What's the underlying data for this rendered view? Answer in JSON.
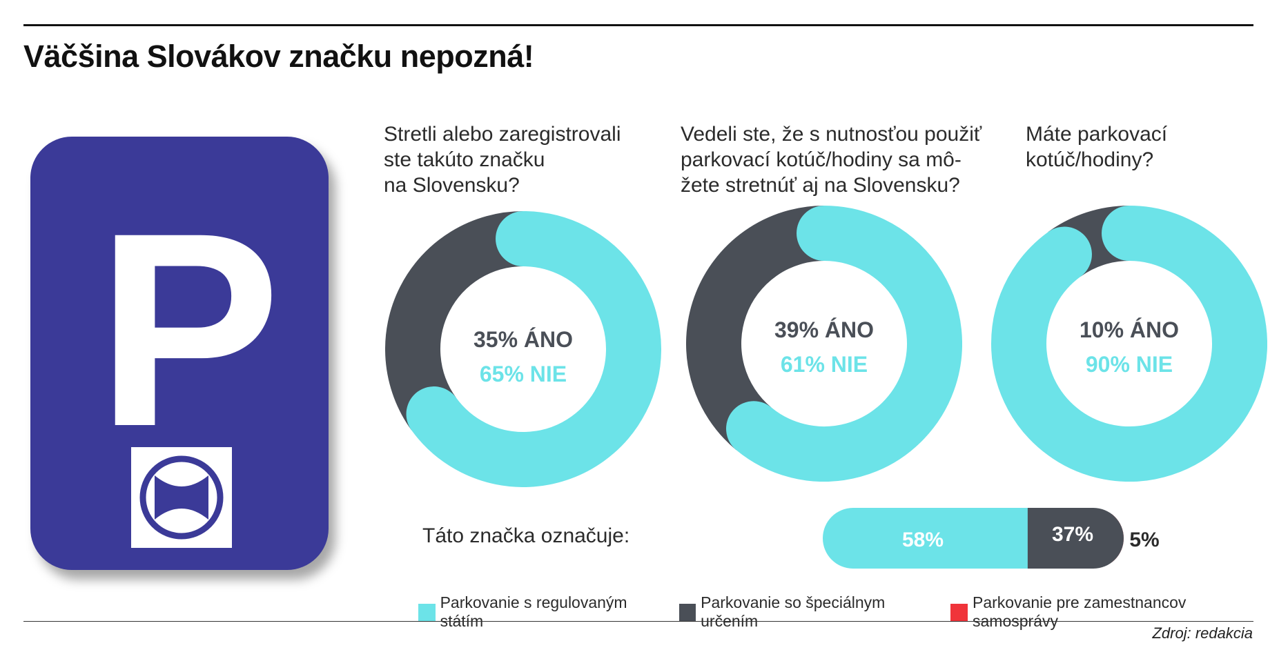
{
  "title": "Väčšina Slovákov značku nepozná!",
  "source": "Zdroj: redakcia",
  "sign": {
    "letter": "P",
    "background_color": "#3b3a98"
  },
  "colors": {
    "yes": "#4a4f57",
    "no": "#6ce3e8",
    "special": "#4a4f57",
    "employees": "#f0343a"
  },
  "chart_data": [
    {
      "type": "pie",
      "question": "Stretli alebo zaregistrovali\nste takúto značku\n na Slovensku?",
      "slices": [
        {
          "name": "ÁNO",
          "value": 35,
          "label": "35% ÁNO",
          "color": "#4a4f57"
        },
        {
          "name": "NIE",
          "value": 65,
          "label": "65% NIE",
          "color": "#6ce3e8"
        }
      ]
    },
    {
      "type": "pie",
      "question": "Vedeli ste, že s nutnosťou použiť\nparkovací kotúč/hodiny sa mô-\nžete stretnúť aj na Slovensku?",
      "slices": [
        {
          "name": "ÁNO",
          "value": 39,
          "label": "39% ÁNO",
          "color": "#4a4f57"
        },
        {
          "name": "NIE",
          "value": 61,
          "label": "61% NIE",
          "color": "#6ce3e8"
        }
      ]
    },
    {
      "type": "pie",
      "question": "Máte parkovací\nkotúč/hodiny?",
      "slices": [
        {
          "name": "ÁNO",
          "value": 10,
          "label": "10% ÁNO",
          "color": "#4a4f57"
        },
        {
          "name": "NIE",
          "value": 90,
          "label": "90% NIE",
          "color": "#6ce3e8"
        }
      ]
    },
    {
      "type": "bar",
      "caption": "Táto značka označuje:",
      "stacked": true,
      "series": [
        {
          "name": "Parkovanie s regulovaným státím",
          "value": 58,
          "label": "58%",
          "color": "#6ce3e8"
        },
        {
          "name": "Parkovanie so špeciálnym určením",
          "value": 37,
          "label": "37%",
          "color": "#4a4f57"
        },
        {
          "name": "Parkovanie pre zamestnancov samosprávy",
          "value": 5,
          "label": "5%",
          "color": "#f0343a"
        }
      ]
    }
  ]
}
